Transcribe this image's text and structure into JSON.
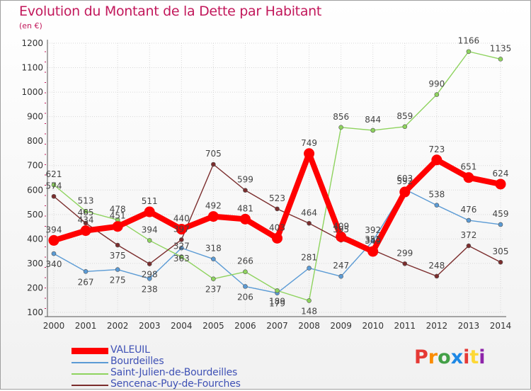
{
  "header": {
    "title": "Evolution du Montant de la Dette par Habitant",
    "unit": "(en €)"
  },
  "logo": {
    "text": "Proxiti",
    "colors": [
      "#e53935",
      "#fb8c00",
      "#43a047",
      "#1e88e5",
      "#e53935",
      "#fdd835",
      "#8e24aa"
    ]
  },
  "chart_data": {
    "type": "line",
    "x": [
      "2000",
      "2001",
      "2002",
      "2003",
      "2004",
      "2005",
      "2006",
      "2007",
      "2008",
      "2009",
      "2010",
      "2011",
      "2012",
      "2013",
      "2014"
    ],
    "ylim": [
      100,
      1200
    ],
    "yticks": [
      100,
      200,
      300,
      400,
      500,
      600,
      700,
      800,
      900,
      1000,
      1100,
      1200
    ],
    "grid": true,
    "legend_position": "bottom-left",
    "series": [
      {
        "name": "VALEUIL",
        "color": "#ff0000",
        "values": [
          394,
          434,
          451,
          511,
          440,
          492,
          481,
          403,
          749,
          409,
          349,
          592,
          723,
          651,
          624
        ]
      },
      {
        "name": "Bourdeilles",
        "color": "#5b9bd5",
        "values": [
          340,
          267,
          275,
          238,
          363,
          318,
          206,
          179,
          281,
          247,
          392,
          603,
          538,
          476,
          459
        ]
      },
      {
        "name": "Saint-Julien-de-Bourdeilles",
        "color": "#8ed35e",
        "values": [
          621,
          513,
          478,
          394,
          327,
          237,
          266,
          189,
          148,
          856,
          844,
          859,
          990,
          1166,
          1135
        ]
      },
      {
        "name": "Sencenac-Puy-de-Fourches",
        "color": "#7b2d2d",
        "values": [
          574,
          465,
          375,
          298,
          397,
          705,
          599,
          523,
          464,
          395,
          355,
          299,
          248,
          372,
          305
        ]
      }
    ]
  }
}
